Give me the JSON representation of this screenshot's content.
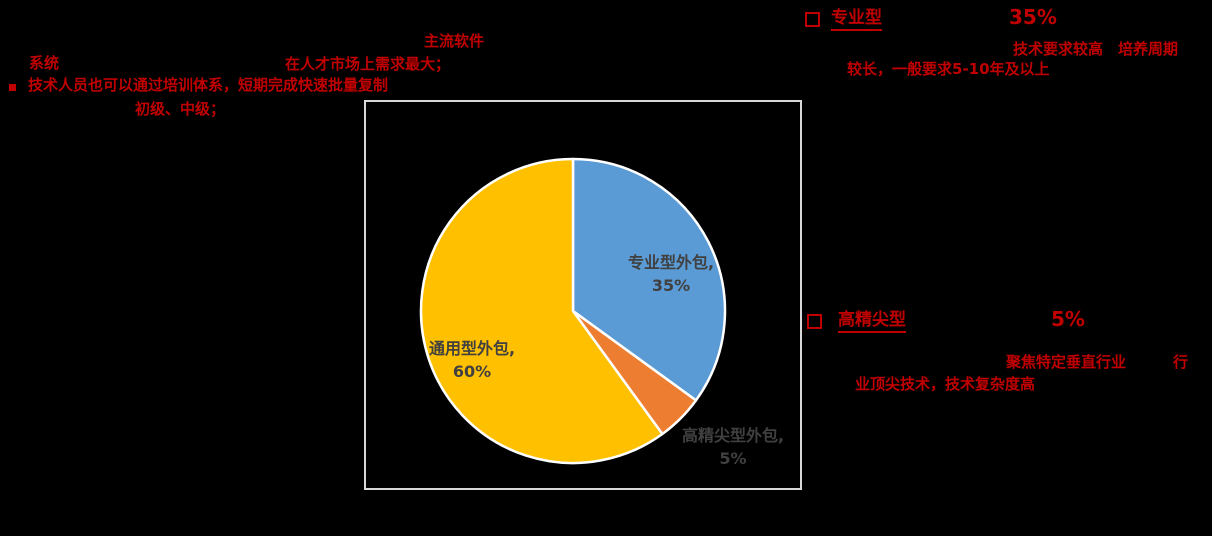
{
  "colors": {
    "background": "#000000",
    "accent_red": "#C00000",
    "pie_label_gray": "#404040",
    "plot_border_gray": "#D8D8D8",
    "slice_border_white": "#FFFFFF"
  },
  "annotations": {
    "top_left": {
      "line1": "系统",
      "line2": "技术人员也可以通过培训体系，短期完成快速批量复制",
      "line3": "初级、中级；"
    },
    "top_center": {
      "line1": "主流软件",
      "line2": "在人才市场上需求最大；"
    },
    "professional": {
      "title": "专业型",
      "value": "35%",
      "desc_line1": "技术要求较高　培养周期",
      "desc_line2": "较长，一般要求5-10年及以上"
    },
    "highend": {
      "title": "高精尖型",
      "value": "5%",
      "desc_line1a": "聚焦特定垂直行业",
      "desc_line1b": "行",
      "desc_line2": "业顶尖技术，技术复杂度高"
    }
  },
  "chart_data": {
    "type": "pie",
    "title": "",
    "start_angle_deg": 0,
    "direction": "clockwise",
    "background": "#000000",
    "label_color": "#404040",
    "slice_border_color": "#FFFFFF",
    "plot_area_border_color": "#D8D8D8",
    "slices": [
      {
        "name": "专业型外包",
        "value": 35,
        "color": "#5B9BD5",
        "data_label_line1": "专业型外包,",
        "percent_label": "35%"
      },
      {
        "name": "高精尖型外包",
        "value": 5,
        "color": "#ED7D31",
        "data_label_line1": "高精尖型外包,",
        "percent_label": "5%"
      },
      {
        "name": "通用型外包",
        "value": 60,
        "color": "#FFC000",
        "data_label_line1": "通用型外包,",
        "percent_label": "60%"
      }
    ]
  }
}
